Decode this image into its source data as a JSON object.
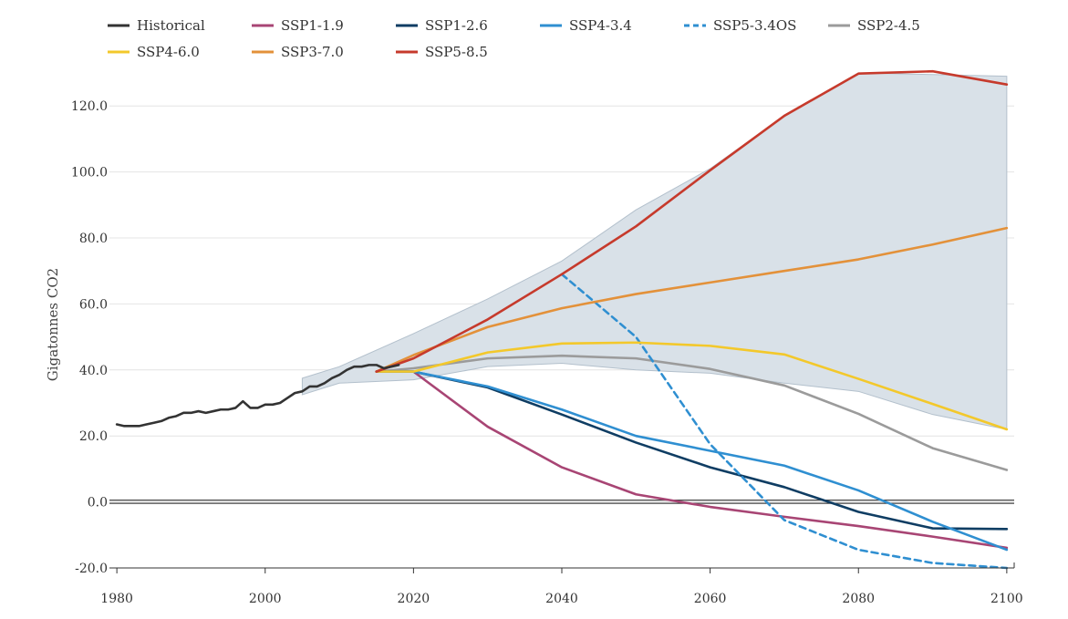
{
  "chart_data": {
    "type": "line",
    "title": "",
    "xlabel": "",
    "ylabel": "Gigatonnes CO2",
    "xlim": [
      1979,
      2101
    ],
    "ylim": [
      -20,
      130
    ],
    "x_ticks": [
      1980,
      2000,
      2020,
      2040,
      2060,
      2080,
      2100
    ],
    "x_tick_labels": [
      "1980",
      "2000",
      "2020",
      "2040",
      "2060",
      "2080",
      "2100"
    ],
    "y_ticks": [
      -20,
      0,
      20,
      40,
      60,
      80,
      100,
      120
    ],
    "y_tick_labels": [
      "-20.0",
      "0.0",
      "20.0",
      "40.0",
      "60.0",
      "80.0",
      "100.0",
      "120.0"
    ],
    "grid": true,
    "legend_position": "top-left",
    "range_band": {
      "x": [
        2005,
        2010,
        2020,
        2030,
        2040,
        2050,
        2060,
        2070,
        2080,
        2090,
        2100
      ],
      "upper": [
        37.5,
        41,
        51,
        61.5,
        73,
        88.5,
        101,
        117,
        130,
        129.5,
        129
      ],
      "lower": [
        32.5,
        36,
        37,
        41,
        42,
        40,
        39,
        36,
        33.5,
        26.5,
        22
      ]
    },
    "series": [
      {
        "name": "Historical",
        "color": "#333333",
        "dashed": false,
        "x": [
          1980,
          1981,
          1982,
          1983,
          1984,
          1985,
          1986,
          1987,
          1988,
          1989,
          1990,
          1991,
          1992,
          1993,
          1994,
          1995,
          1996,
          1997,
          1998,
          1999,
          2000,
          2001,
          2002,
          2003,
          2004,
          2005,
          2006,
          2007,
          2008,
          2009,
          2010,
          2011,
          2012,
          2013,
          2014,
          2015,
          2016,
          2017,
          2018
        ],
        "y": [
          23.5,
          23,
          23,
          23,
          23.5,
          24,
          24.5,
          25.5,
          26,
          27,
          27,
          27.5,
          27,
          27.5,
          28,
          28,
          28.5,
          30.5,
          28.5,
          28.5,
          29.5,
          29.5,
          30,
          31.5,
          33,
          33.5,
          35,
          35,
          36,
          37.5,
          38.5,
          40,
          41,
          41,
          41.5,
          41.5,
          40.5,
          41,
          41.5
        ]
      },
      {
        "name": "SSP1-1.9",
        "color": "#a84574",
        "dashed": false,
        "x": [
          2015,
          2020,
          2030,
          2040,
          2050,
          2060,
          2070,
          2080,
          2090,
          2100
        ],
        "y": [
          39.5,
          39.5,
          22.8,
          10.5,
          2.3,
          -1.5,
          -4.5,
          -7.3,
          -10.5,
          -13.9
        ]
      },
      {
        "name": "SSP1-2.6",
        "color": "#0f3d63",
        "dashed": false,
        "x": [
          2015,
          2020,
          2030,
          2040,
          2050,
          2060,
          2070,
          2080,
          2090,
          2100
        ],
        "y": [
          39.5,
          39.5,
          34.7,
          26.5,
          18,
          10.5,
          4.5,
          -3,
          -8,
          -8.2
        ]
      },
      {
        "name": "SSP4-3.4",
        "color": "#2f8fd1",
        "dashed": false,
        "x": [
          2015,
          2020,
          2030,
          2040,
          2050,
          2060,
          2070,
          2080,
          2090,
          2100
        ],
        "y": [
          39.5,
          39.5,
          35,
          28,
          20,
          15.5,
          11,
          3.5,
          -6,
          -14.5
        ]
      },
      {
        "name": "SSP5-3.4OS",
        "color": "#2f8fd1",
        "dashed": true,
        "x": [
          2040,
          2050,
          2060,
          2070,
          2080,
          2090,
          2100
        ],
        "y": [
          69,
          50,
          17.5,
          -5.5,
          -14.5,
          -18.5,
          -20
        ]
      },
      {
        "name": "SSP2-4.5",
        "color": "#9b9b9b",
        "dashed": false,
        "x": [
          2015,
          2020,
          2030,
          2040,
          2050,
          2060,
          2070,
          2080,
          2090,
          2100
        ],
        "y": [
          39.5,
          40.5,
          43.5,
          44.3,
          43.5,
          40.3,
          35.3,
          26.7,
          16.3,
          9.7
        ]
      },
      {
        "name": "SSP4-6.0",
        "color": "#f3c82b",
        "dashed": false,
        "x": [
          2015,
          2020,
          2030,
          2040,
          2050,
          2060,
          2070,
          2080,
          2090,
          2100
        ],
        "y": [
          39.5,
          39.5,
          45.3,
          48,
          48.3,
          47.3,
          44.7,
          37.3,
          29.7,
          22
        ]
      },
      {
        "name": "SSP3-7.0",
        "color": "#e3913a",
        "dashed": false,
        "x": [
          2015,
          2020,
          2030,
          2040,
          2050,
          2060,
          2070,
          2080,
          2090,
          2100
        ],
        "y": [
          39.5,
          44.5,
          53,
          58.7,
          63,
          66.5,
          70,
          73.5,
          78,
          83
        ]
      },
      {
        "name": "SSP5-8.5",
        "color": "#c63a2c",
        "dashed": false,
        "x": [
          2015,
          2020,
          2030,
          2040,
          2050,
          2060,
          2070,
          2080,
          2090,
          2100
        ],
        "y": [
          39.5,
          43.5,
          55.3,
          69,
          83.5,
          100.5,
          117,
          129.8,
          130.5,
          126.5
        ]
      }
    ]
  }
}
